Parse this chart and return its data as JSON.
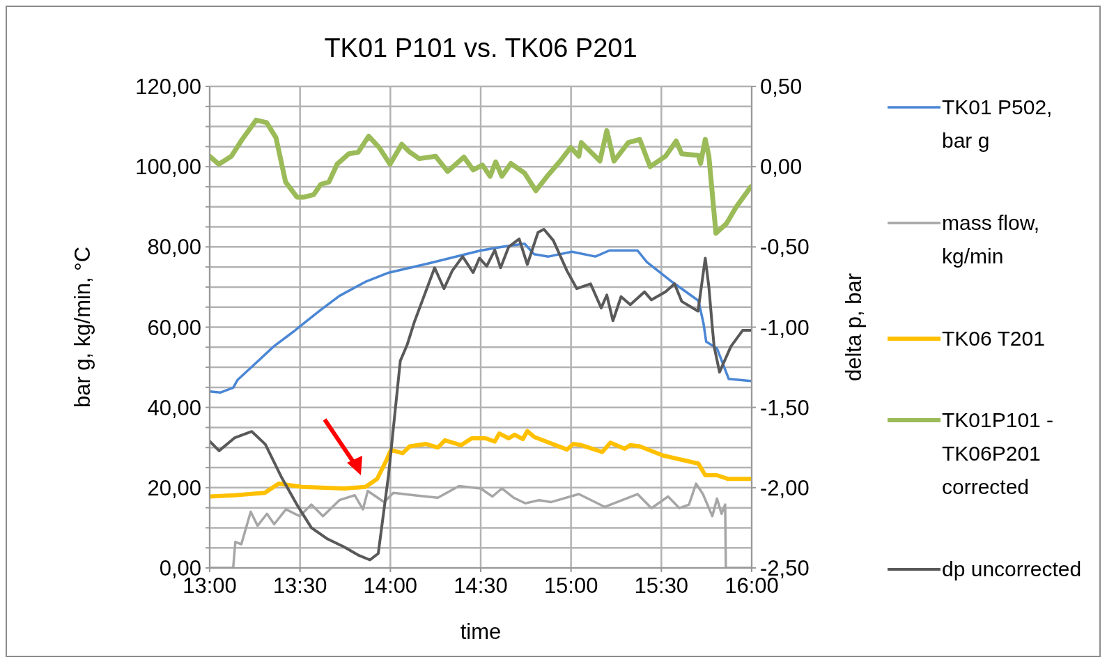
{
  "chart_data": {
    "type": "line",
    "title": "TK01 P101 vs. TK06 P201",
    "xlabel": "time",
    "ylabel": "bar g, kg/min, °C",
    "y2label": "delta p, bar",
    "xlim": [
      13,
      16
    ],
    "xticks": [
      {
        "value": 13,
        "label": "13:00"
      },
      {
        "value": 13.5,
        "label": "13:30"
      },
      {
        "value": 14,
        "label": "14:00"
      },
      {
        "value": 14.5,
        "label": "14:30"
      },
      {
        "value": 15,
        "label": "15:00"
      },
      {
        "value": 15.5,
        "label": "15:30"
      },
      {
        "value": 16,
        "label": "16:00"
      }
    ],
    "ylim": [
      0,
      120
    ],
    "yticks": [
      {
        "value": 0,
        "label": "0,00"
      },
      {
        "value": 5,
        "label": null
      },
      {
        "value": 10,
        "label": null
      },
      {
        "value": 15,
        "label": null
      },
      {
        "value": 20,
        "label": "20,00"
      },
      {
        "value": 25,
        "label": null
      },
      {
        "value": 30,
        "label": null
      },
      {
        "value": 35,
        "label": null
      },
      {
        "value": 40,
        "label": "40,00"
      },
      {
        "value": 45,
        "label": null
      },
      {
        "value": 50,
        "label": null
      },
      {
        "value": 55,
        "label": null
      },
      {
        "value": 60,
        "label": "60,00"
      },
      {
        "value": 65,
        "label": null
      },
      {
        "value": 70,
        "label": null
      },
      {
        "value": 75,
        "label": null
      },
      {
        "value": 80,
        "label": "80,00"
      },
      {
        "value": 85,
        "label": null
      },
      {
        "value": 90,
        "label": null
      },
      {
        "value": 95,
        "label": null
      },
      {
        "value": 100,
        "label": "100,00"
      },
      {
        "value": 105,
        "label": null
      },
      {
        "value": 110,
        "label": null
      },
      {
        "value": 115,
        "label": null
      },
      {
        "value": 120,
        "label": "120,00"
      }
    ],
    "y2lim": [
      -2.5,
      0.5
    ],
    "y2ticks": [
      {
        "value": -2.5,
        "label": "-2,50"
      },
      {
        "value": -2,
        "label": "-2,00"
      },
      {
        "value": -1.5,
        "label": "-1,50"
      },
      {
        "value": -1,
        "label": "-1,00"
      },
      {
        "value": -0.5,
        "label": "-0,50"
      },
      {
        "value": 0,
        "label": "0,00"
      },
      {
        "value": 0.5,
        "label": "0,50"
      }
    ],
    "grid": true,
    "legend": "right",
    "marker": "none",
    "line_style": "solid",
    "series": [
      {
        "name": "TK01 P502, bar g",
        "color": "#4a86d4",
        "x": [
          13,
          13.058,
          13.13,
          13.155,
          13.24,
          13.357,
          13.467,
          13.525,
          13.615,
          13.718,
          13.862,
          13.992,
          14.212,
          14.445,
          14.5,
          14.617,
          14.743,
          14.795,
          14.875,
          15.005,
          15.135,
          15.212,
          15.368,
          15.42,
          15.562,
          15.705,
          15.733,
          15.748,
          15.808,
          15.873,
          15.995
        ],
        "values": [
          44,
          43.7,
          44.9,
          46.9,
          50.4,
          55.3,
          59,
          61.1,
          64.3,
          67.8,
          71.3,
          73.6,
          75.9,
          78.5,
          79.1,
          80,
          80.8,
          78.2,
          77.6,
          78.8,
          77.6,
          79.1,
          79.1,
          76.2,
          71.2,
          66.6,
          61,
          56.4,
          54.7,
          47.1,
          46.6
        ]
      },
      {
        "name": "mass flow, kg/min",
        "color": "#a6a6a6",
        "x": [
          13,
          13.13,
          13.142,
          13.175,
          13.227,
          13.265,
          13.317,
          13.357,
          13.422,
          13.498,
          13.563,
          13.627,
          13.718,
          13.803,
          13.848,
          13.875,
          13.965,
          14.017,
          14.133,
          14.263,
          14.38,
          14.5,
          14.565,
          14.617,
          14.682,
          14.747,
          14.823,
          14.888,
          15.043,
          15.187,
          15.368,
          15.445,
          15.537,
          15.6,
          15.653,
          15.692,
          15.73,
          15.782,
          15.808,
          15.833,
          15.853,
          15.857,
          15.995
        ],
        "values": [
          0,
          0,
          6.5,
          5.9,
          14,
          10.5,
          13.5,
          10.9,
          14.6,
          12.9,
          15.8,
          12.9,
          16.9,
          18.1,
          14.6,
          19.2,
          16.4,
          18.7,
          18.1,
          17.5,
          20.4,
          19.8,
          17.8,
          19.8,
          17.5,
          16.1,
          16.9,
          16.4,
          18.4,
          15.2,
          18.4,
          14.9,
          17.8,
          14.9,
          15.8,
          21,
          18.4,
          12.9,
          17.3,
          13.5,
          15.8,
          0,
          0
        ]
      },
      {
        "name": "TK06 T201",
        "color": "#ffc000",
        "x": [
          13,
          13.137,
          13.305,
          13.382,
          13.512,
          13.745,
          13.862,
          13.927,
          13.978,
          14.003,
          14.068,
          14.107,
          14.198,
          14.263,
          14.302,
          14.392,
          14.45,
          14.527,
          14.578,
          14.603,
          14.655,
          14.688,
          14.733,
          14.758,
          14.798,
          14.978,
          15.012,
          15.057,
          15.173,
          15.218,
          15.297,
          15.328,
          15.38,
          15.51,
          15.705,
          15.743,
          15.808,
          15.867,
          15.995
        ],
        "values": [
          17.8,
          18.1,
          18.7,
          21,
          20.2,
          19.8,
          20.2,
          22.2,
          26.8,
          29.4,
          28.6,
          30.3,
          30.9,
          30,
          31.8,
          30.6,
          32.3,
          32.3,
          31.5,
          33.5,
          32.3,
          33.2,
          32.1,
          34.1,
          32.6,
          29.5,
          30.9,
          30.6,
          28.9,
          31.2,
          29.7,
          30.6,
          30.3,
          28,
          26,
          23.1,
          23.1,
          22.2,
          22.2
        ]
      },
      {
        "name": "TK01P101 - TK06P201 corrected",
        "color": "#9bbb59",
        "axis": "y2",
        "x": [
          13,
          13.05,
          13.12,
          13.18,
          13.257,
          13.315,
          13.367,
          13.42,
          13.483,
          13.523,
          13.575,
          13.615,
          13.66,
          13.705,
          13.77,
          13.822,
          13.88,
          13.938,
          13.998,
          14.063,
          14.108,
          14.16,
          14.25,
          14.317,
          14.407,
          14.458,
          14.51,
          14.552,
          14.583,
          14.617,
          14.667,
          14.743,
          14.805,
          14.875,
          14.94,
          14.998,
          15.043,
          15.057,
          15.16,
          15.198,
          15.238,
          15.317,
          15.38,
          15.438,
          15.523,
          15.582,
          15.613,
          15.705,
          15.717,
          15.743,
          15.763,
          15.802,
          15.86,
          15.912,
          15.995
        ],
        "values": [
          0.065,
          0.015,
          0.065,
          0.17,
          0.29,
          0.275,
          0.18,
          -0.095,
          -0.19,
          -0.19,
          -0.175,
          -0.11,
          -0.095,
          0.015,
          0.08,
          0.09,
          0.19,
          0.12,
          0.015,
          0.14,
          0.09,
          0.05,
          0.065,
          -0.03,
          0.06,
          -0.02,
          0.01,
          -0.06,
          0.03,
          -0.06,
          0.02,
          -0.04,
          -0.15,
          -0.05,
          0.035,
          0.12,
          0.065,
          0.15,
          0.035,
          0.225,
          0.035,
          0.15,
          0.17,
          0,
          0.065,
          0.16,
          0.08,
          0.07,
          0.02,
          0.17,
          0.065,
          -0.415,
          -0.355,
          -0.255,
          -0.125
        ]
      },
      {
        "name": "dp uncorrected",
        "color": "#595959",
        "axis": "y2",
        "x": [
          13,
          13.052,
          13.137,
          13.233,
          13.308,
          13.395,
          13.485,
          13.563,
          13.653,
          13.745,
          13.822,
          13.887,
          13.933,
          13.99,
          14.055,
          14.093,
          14.132,
          14.245,
          14.297,
          14.342,
          14.4,
          14.458,
          14.493,
          14.533,
          14.578,
          14.61,
          14.655,
          14.713,
          14.758,
          14.817,
          14.85,
          14.902,
          14.978,
          15.032,
          15.108,
          15.167,
          15.198,
          15.232,
          15.277,
          15.328,
          15.407,
          15.445,
          15.523,
          15.573,
          15.613,
          15.703,
          15.743,
          15.763,
          15.782,
          15.792,
          15.822,
          15.885,
          15.95,
          15.995
        ],
        "values": [
          -1.71,
          -1.77,
          -1.69,
          -1.65,
          -1.73,
          -1.93,
          -2.11,
          -2.25,
          -2.32,
          -2.37,
          -2.42,
          -2.45,
          -2.41,
          -1.92,
          -1.21,
          -1.11,
          -0.97,
          -0.63,
          -0.76,
          -0.65,
          -0.56,
          -0.66,
          -0.57,
          -0.62,
          -0.52,
          -0.63,
          -0.5,
          -0.45,
          -0.61,
          -0.41,
          -0.39,
          -0.46,
          -0.65,
          -0.76,
          -0.73,
          -0.88,
          -0.8,
          -0.96,
          -0.81,
          -0.86,
          -0.78,
          -0.83,
          -0.78,
          -0.73,
          -0.84,
          -0.9,
          -0.57,
          -0.75,
          -1.0,
          -1.12,
          -1.28,
          -1.12,
          -1.02,
          -1.02
        ]
      }
    ]
  }
}
